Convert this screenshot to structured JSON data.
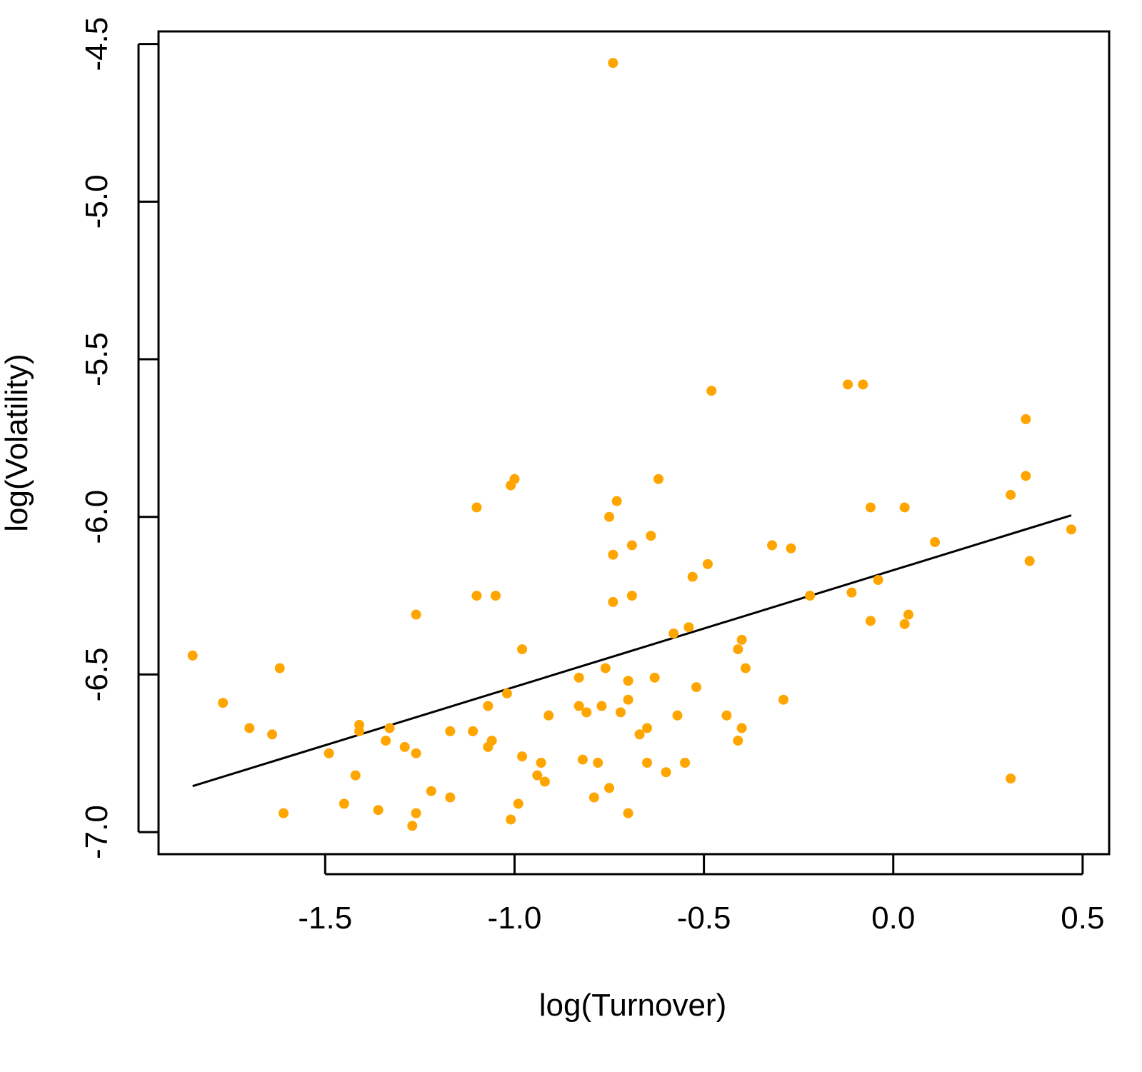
{
  "chart_data": {
    "type": "scatter",
    "title": "",
    "xlabel": "log(Turnover)",
    "ylabel": "log(Volatility)",
    "xlim": [
      -1.94,
      0.57
    ],
    "ylim": [
      -7.07,
      -4.46
    ],
    "grid": false,
    "x_ticks": [
      -1.5,
      -1.0,
      -0.5,
      0.0,
      0.5
    ],
    "x_tick_labels": [
      "-1.5",
      "-1.0",
      "-0.5",
      "0.0",
      "0.5"
    ],
    "y_ticks": [
      -4.5,
      -5.0,
      -5.5,
      -6.0,
      -6.5,
      -7.0
    ],
    "y_tick_labels": [
      "-4.5",
      "-5.0",
      "-5.5",
      "-6.0",
      "-6.5",
      "-7.0"
    ],
    "point_color": "#FFA500",
    "line_color": "#000000",
    "regression_line": {
      "x": [
        -1.85,
        0.47
      ],
      "y": [
        -6.854,
        -5.995
      ]
    },
    "points": [
      [
        -1.85,
        -6.44
      ],
      [
        -0.74,
        -4.56
      ],
      [
        -0.48,
        -5.6
      ],
      [
        -0.12,
        -5.58
      ],
      [
        -0.08,
        -5.58
      ],
      [
        0.35,
        -5.69
      ],
      [
        0.35,
        -5.87
      ],
      [
        0.31,
        -5.93
      ],
      [
        0.47,
        -6.04
      ],
      [
        0.36,
        -6.14
      ],
      [
        -1.1,
        -5.97
      ],
      [
        -1.0,
        -5.88
      ],
      [
        -1.01,
        -5.9
      ],
      [
        -0.62,
        -5.88
      ],
      [
        -0.73,
        -5.95
      ],
      [
        -0.75,
        -6.0
      ],
      [
        -0.06,
        -5.97
      ],
      [
        0.03,
        -5.97
      ],
      [
        0.11,
        -6.08
      ],
      [
        -0.64,
        -6.06
      ],
      [
        -0.69,
        -6.09
      ],
      [
        -0.74,
        -6.12
      ],
      [
        -0.32,
        -6.09
      ],
      [
        -0.27,
        -6.1
      ],
      [
        -0.49,
        -6.15
      ],
      [
        -0.53,
        -6.19
      ],
      [
        -1.1,
        -6.25
      ],
      [
        -1.05,
        -6.25
      ],
      [
        -0.74,
        -6.27
      ],
      [
        -0.69,
        -6.25
      ],
      [
        -0.11,
        -6.24
      ],
      [
        -0.04,
        -6.2
      ],
      [
        -0.22,
        -6.25
      ],
      [
        -1.26,
        -6.31
      ],
      [
        0.04,
        -6.31
      ],
      [
        -0.06,
        -6.33
      ],
      [
        0.03,
        -6.34
      ],
      [
        -0.58,
        -6.37
      ],
      [
        -0.54,
        -6.35
      ],
      [
        -0.4,
        -6.39
      ],
      [
        -0.41,
        -6.42
      ],
      [
        -0.98,
        -6.42
      ],
      [
        -0.39,
        -6.48
      ],
      [
        -1.62,
        -6.48
      ],
      [
        -0.76,
        -6.48
      ],
      [
        -0.83,
        -6.51
      ],
      [
        -0.7,
        -6.52
      ],
      [
        -0.63,
        -6.51
      ],
      [
        -0.52,
        -6.54
      ],
      [
        -1.02,
        -6.56
      ],
      [
        -0.7,
        -6.58
      ],
      [
        -0.29,
        -6.58
      ],
      [
        -1.77,
        -6.59
      ],
      [
        -1.07,
        -6.6
      ],
      [
        -0.83,
        -6.6
      ],
      [
        -0.81,
        -6.62
      ],
      [
        -0.77,
        -6.6
      ],
      [
        -0.72,
        -6.62
      ],
      [
        -0.91,
        -6.63
      ],
      [
        -0.57,
        -6.63
      ],
      [
        -0.44,
        -6.63
      ],
      [
        -1.7,
        -6.67
      ],
      [
        -1.64,
        -6.69
      ],
      [
        -1.41,
        -6.66
      ],
      [
        -1.41,
        -6.68
      ],
      [
        -1.33,
        -6.67
      ],
      [
        -1.17,
        -6.68
      ],
      [
        -1.11,
        -6.68
      ],
      [
        -0.67,
        -6.69
      ],
      [
        -0.65,
        -6.67
      ],
      [
        -0.4,
        -6.67
      ],
      [
        -1.34,
        -6.71
      ],
      [
        -1.06,
        -6.71
      ],
      [
        -1.07,
        -6.73
      ],
      [
        -0.41,
        -6.71
      ],
      [
        -1.29,
        -6.73
      ],
      [
        -1.26,
        -6.75
      ],
      [
        -1.49,
        -6.75
      ],
      [
        -0.98,
        -6.76
      ],
      [
        -0.93,
        -6.78
      ],
      [
        -0.82,
        -6.77
      ],
      [
        -0.78,
        -6.78
      ],
      [
        -0.65,
        -6.78
      ],
      [
        -0.55,
        -6.78
      ],
      [
        -1.42,
        -6.82
      ],
      [
        -0.94,
        -6.82
      ],
      [
        -0.92,
        -6.84
      ],
      [
        -0.6,
        -6.81
      ],
      [
        0.31,
        -6.83
      ],
      [
        -0.75,
        -6.86
      ],
      [
        -1.22,
        -6.87
      ],
      [
        -1.17,
        -6.89
      ],
      [
        -0.79,
        -6.89
      ],
      [
        -1.45,
        -6.91
      ],
      [
        -0.99,
        -6.91
      ],
      [
        -1.36,
        -6.93
      ],
      [
        -1.61,
        -6.94
      ],
      [
        -0.7,
        -6.94
      ],
      [
        -1.26,
        -6.94
      ],
      [
        -1.01,
        -6.96
      ],
      [
        -1.27,
        -6.98
      ]
    ]
  }
}
